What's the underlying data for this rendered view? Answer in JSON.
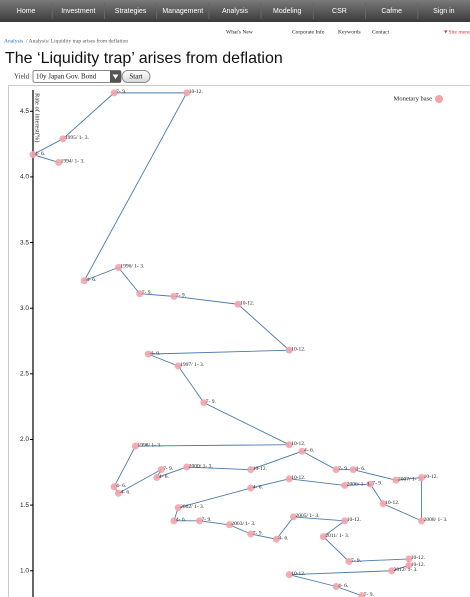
{
  "nav": {
    "items": [
      "Home",
      "Investment",
      "Strategies",
      "Management",
      "Analysis",
      "Modeling",
      "CSR",
      "Cafme",
      "Sign in"
    ]
  },
  "top_links": [
    "What's New",
    "Corporate Info",
    "Keywords",
    "Contact",
    "▼Site menu"
  ],
  "breadcrumb": [
    "Analysis",
    "/ Analysis/ Liquidity trap arises from deflation"
  ],
  "title": "The ‘Liquidity trap’ arises from deflation",
  "controls": {
    "label": "Yield",
    "select": "10y Japan Gov. Bond",
    "button": "Start"
  },
  "chart_data": {
    "type": "scatter",
    "connected": true,
    "line_color": "#4a7aab",
    "ylabel": "Rate of interest(%)",
    "legend": "top-right",
    "xlim": [
      0,
      100
    ],
    "ylim": [
      0.8,
      4.7
    ],
    "yticks": [
      {
        "value": 1.0,
        "label": "1.0"
      },
      {
        "value": 1.5,
        "label": "1.5"
      },
      {
        "value": 2.0,
        "label": "2.0"
      },
      {
        "value": 2.5,
        "label": "2.5"
      },
      {
        "value": 3.0,
        "label": "3.0"
      },
      {
        "value": 3.5,
        "label": "3.5"
      },
      {
        "value": 4.0,
        "label": "4.0"
      },
      {
        "value": 4.5,
        "label": "4.5"
      }
    ],
    "series": [
      {
        "name": "Monetary base",
        "color": "#f4a3ab",
        "x": [
          6,
          0,
          7,
          19,
          36,
          12,
          20,
          25,
          33,
          48,
          60,
          27,
          34,
          40,
          60,
          24,
          19,
          20,
          30,
          29,
          36,
          51,
          63,
          71,
          75,
          85,
          91,
          91,
          82,
          79,
          73,
          60,
          51,
          34,
          33,
          39,
          46,
          51,
          57,
          61,
          73,
          68,
          74,
          88,
          88,
          84,
          60,
          71,
          77
        ],
        "values": [
          4.11,
          4.17,
          4.29,
          4.64,
          4.64,
          3.21,
          3.31,
          3.11,
          3.09,
          3.03,
          2.68,
          2.65,
          2.56,
          2.28,
          1.96,
          1.95,
          1.64,
          1.59,
          1.77,
          1.71,
          1.79,
          1.77,
          1.91,
          1.77,
          1.77,
          1.69,
          1.71,
          1.38,
          1.51,
          1.66,
          1.65,
          1.7,
          1.63,
          1.48,
          1.38,
          1.38,
          1.35,
          1.28,
          1.24,
          1.41,
          1.38,
          1.26,
          1.07,
          1.09,
          1.04,
          1.0,
          0.97,
          0.88,
          0.81
        ],
        "labels": [
          "1994/ 1- 3.",
          "4- 6.",
          "1995/ 1- 3.",
          "7- 9.",
          "10-12.",
          "4- 6.",
          "1996/ 1- 3.",
          "7- 9.",
          "7- 9.",
          "10-12.",
          "10-12.",
          "4- 6.",
          "1997/ 1- 3.",
          "7- 9.",
          "10-12.",
          "1998/ 1- 3.",
          "4- 6.",
          "4- 6.",
          "7- 9.",
          "4- 6.",
          "2000/ 1- 3.",
          "10-12.",
          "4- 6.",
          "7- 9.",
          "4- 6.",
          "2007/ 1- 3.",
          "10-12.",
          "2008/ 1- 3.",
          "10-12.",
          "7- 9.",
          "2006/ 1- 3.",
          "10-12.",
          "4- 6.",
          "2002/ 1- 3.",
          "4- 6.",
          "7- 9.",
          "2003/ 1- 3.",
          "7- 9.",
          "4- 6.",
          "2005/ 1- 3.",
          "10-12.",
          "2011/ 1- 3.",
          "7- 9.",
          "10-12.",
          "10-12.",
          "2012/ 1- 3.",
          "10-12.",
          "4- 6.",
          "7- 9."
        ]
      }
    ]
  }
}
